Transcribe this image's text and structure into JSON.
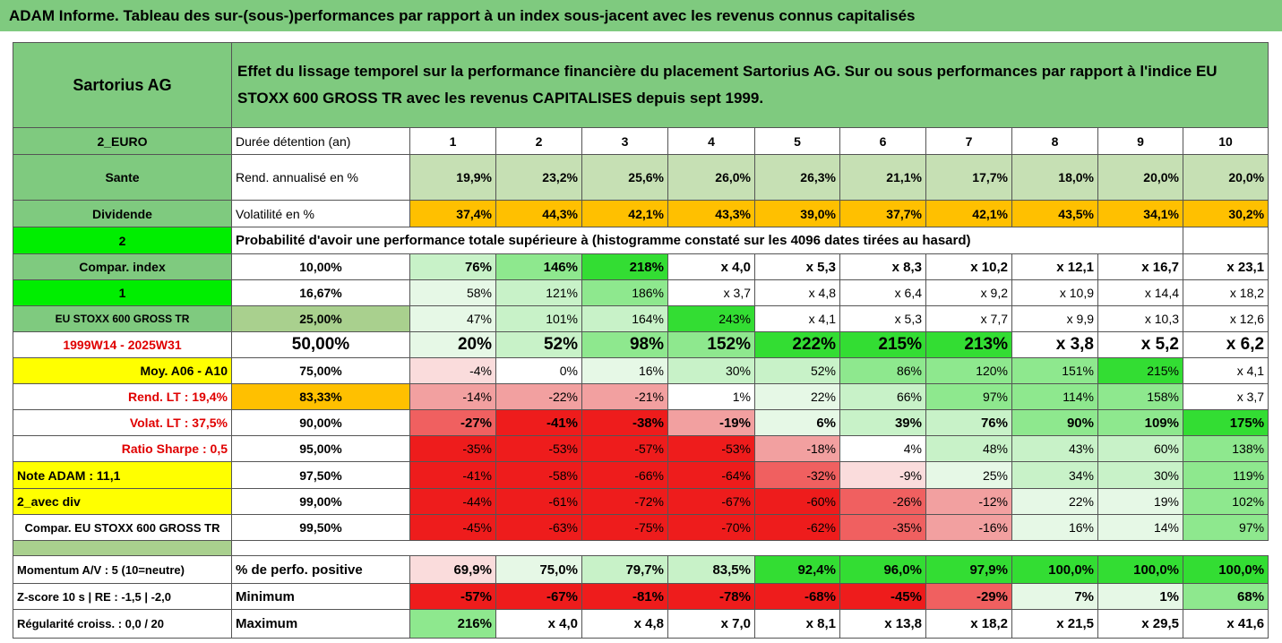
{
  "title": "ADAM Informe. Tableau des sur-(sous-)performances par rapport à un index sous-jacent avec les revenus connus capitalisés",
  "table": {
    "header": {
      "name": "Sartorius AG",
      "description": "Effet du lissage temporel sur la performance financière du placement Sartorius AG. Sur ou sous performances par rapport à l'indice EU STOXX 600 GROSS TR avec les revenus CAPITALISES depuis sept 1999."
    },
    "rows": [
      [
        "2_EURO",
        "Durée détention (an)",
        "1",
        "2",
        "3",
        "4",
        "5",
        "6",
        "7",
        "8",
        "9",
        "10"
      ],
      [
        "Sante",
        "Rend. annualisé en %",
        "19,9%",
        "23,2%",
        "25,6%",
        "26,0%",
        "26,3%",
        "21,1%",
        "17,7%",
        "18,0%",
        "20,0%",
        "20,0%"
      ],
      [
        "Dividende",
        "Volatilité en %",
        "37,4%",
        "44,3%",
        "42,1%",
        "43,3%",
        "39,0%",
        "37,7%",
        "42,1%",
        "43,5%",
        "34,1%",
        "30,2%"
      ],
      [
        "2",
        "Probabilité d'avoir une performance totale supérieure à (histogramme constaté sur les 4096 dates tirées au hasard)"
      ],
      [
        "Compar. index",
        "10,00%",
        "76%",
        "146%",
        "218%",
        "x 4,0",
        "x 5,3",
        "x 8,3",
        "x 10,2",
        "x 12,1",
        "x 16,7",
        "x 23,1"
      ],
      [
        "1",
        "16,67%",
        "58%",
        "121%",
        "186%",
        "x 3,7",
        "x 4,8",
        "x 6,4",
        "x 9,2",
        "x 10,9",
        "x 14,4",
        "x 18,2"
      ],
      [
        "EU STOXX 600 GROSS TR",
        "25,00%",
        "47%",
        "101%",
        "164%",
        "243%",
        "x 4,1",
        "x 5,3",
        "x 7,7",
        "x 9,9",
        "x 10,3",
        "x 12,6"
      ],
      [
        "1999W14 - 2025W31",
        "50,00%",
        "20%",
        "52%",
        "98%",
        "152%",
        "222%",
        "215%",
        "213%",
        "x 3,8",
        "x 5,2",
        "x 6,2"
      ],
      [
        "Moy. A06 - A10",
        "75,00%",
        "-4%",
        "0%",
        "16%",
        "30%",
        "52%",
        "86%",
        "120%",
        "151%",
        "215%",
        "x 4,1"
      ],
      [
        "Rend. LT :   19,4%",
        "83,33%",
        "-14%",
        "-22%",
        "-21%",
        "1%",
        "22%",
        "66%",
        "97%",
        "114%",
        "158%",
        "x 3,7"
      ],
      [
        "Volat. LT :   37,5%",
        "90,00%",
        "-27%",
        "-41%",
        "-38%",
        "-19%",
        "6%",
        "39%",
        "76%",
        "90%",
        "109%",
        "175%"
      ],
      [
        "Ratio Sharpe :    0,5",
        "95,00%",
        "-35%",
        "-53%",
        "-57%",
        "-53%",
        "-18%",
        "4%",
        "48%",
        "43%",
        "60%",
        "138%"
      ],
      [
        "Note ADAM : 11,1",
        "97,50%",
        "-41%",
        "-58%",
        "-66%",
        "-64%",
        "-32%",
        "-9%",
        "25%",
        "34%",
        "30%",
        "119%"
      ],
      [
        "2_avec div",
        "99,00%",
        "-44%",
        "-61%",
        "-72%",
        "-67%",
        "-60%",
        "-26%",
        "-12%",
        "22%",
        "19%",
        "102%"
      ],
      [
        "Compar. EU STOXX 600 GROSS TR",
        "99,50%",
        "-45%",
        "-63%",
        "-75%",
        "-70%",
        "-62%",
        "-35%",
        "-16%",
        "16%",
        "14%",
        "97%"
      ]
    ],
    "footer_rows": [
      [
        "Momentum A/V : 5 (10=neutre)",
        "% de perfo. positive",
        "69,9%",
        "75,0%",
        "79,7%",
        "83,5%",
        "92,4%",
        "96,0%",
        "97,9%",
        "100,0%",
        "100,0%",
        "100,0%"
      ],
      [
        "Z-score 10 s  | RE : -1,5 | -2,0",
        "Minimum",
        "-57%",
        "-67%",
        "-81%",
        "-78%",
        "-68%",
        "-45%",
        "-29%",
        "7%",
        "1%",
        "68%"
      ],
      [
        "Régularité croiss. : 0,0 / 20",
        "Maximum",
        "216%",
        "x 4,0",
        "x 4,8",
        "x 7,0",
        "x 8,1",
        "x 13,8",
        "x 18,2",
        "x 21,5",
        "x 29,5",
        "x 41,6"
      ]
    ]
  }
}
